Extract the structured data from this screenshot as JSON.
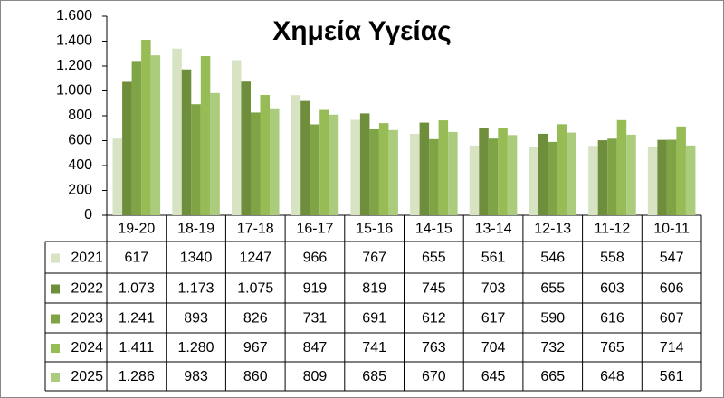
{
  "chart_data": {
    "type": "bar",
    "title": "Χημεία Υγείας",
    "categories": [
      "19-20",
      "18-19",
      "17-18",
      "16-17",
      "15-16",
      "14-15",
      "13-14",
      "12-13",
      "11-12",
      "10-11"
    ],
    "series": [
      {
        "name": "2021",
        "color": "#d7e3c3",
        "values": [
          617,
          1340,
          1247,
          966,
          767,
          655,
          561,
          546,
          558,
          547
        ]
      },
      {
        "name": "2022",
        "color": "#6e8e3b",
        "values": [
          1073,
          1173,
          1075,
          919,
          819,
          745,
          703,
          655,
          603,
          606
        ],
        "value_labels": [
          "1.073",
          "1.173",
          "1.075",
          "919",
          "819",
          "745",
          "703",
          "655",
          "603",
          "606"
        ]
      },
      {
        "name": "2023",
        "color": "#7ea446",
        "values": [
          1241,
          893,
          826,
          731,
          691,
          612,
          617,
          590,
          616,
          607
        ],
        "value_labels": [
          "1.241",
          "893",
          "826",
          "731",
          "691",
          "612",
          "617",
          "590",
          "616",
          "607"
        ]
      },
      {
        "name": "2024",
        "color": "#97bb55",
        "values": [
          1411,
          1280,
          967,
          847,
          741,
          763,
          704,
          732,
          765,
          714
        ],
        "value_labels": [
          "1.411",
          "1.280",
          "967",
          "847",
          "741",
          "763",
          "704",
          "732",
          "765",
          "714"
        ]
      },
      {
        "name": "2025",
        "color": "#abcc7c",
        "values": [
          1286,
          983,
          860,
          809,
          685,
          670,
          645,
          665,
          648,
          561
        ],
        "value_labels": [
          "1.286",
          "983",
          "860",
          "809",
          "685",
          "670",
          "645",
          "665",
          "648",
          "561"
        ]
      }
    ],
    "ylim": [
      0,
      1600
    ],
    "yticks": [
      0,
      200,
      400,
      600,
      800,
      {
        "value": 1000,
        "label": "1.000"
      },
      {
        "value": 1200,
        "label": "1.200"
      },
      {
        "value": 1400,
        "label": "1.400"
      },
      {
        "value": 1600,
        "label": "1.600"
      }
    ],
    "grid": false
  }
}
